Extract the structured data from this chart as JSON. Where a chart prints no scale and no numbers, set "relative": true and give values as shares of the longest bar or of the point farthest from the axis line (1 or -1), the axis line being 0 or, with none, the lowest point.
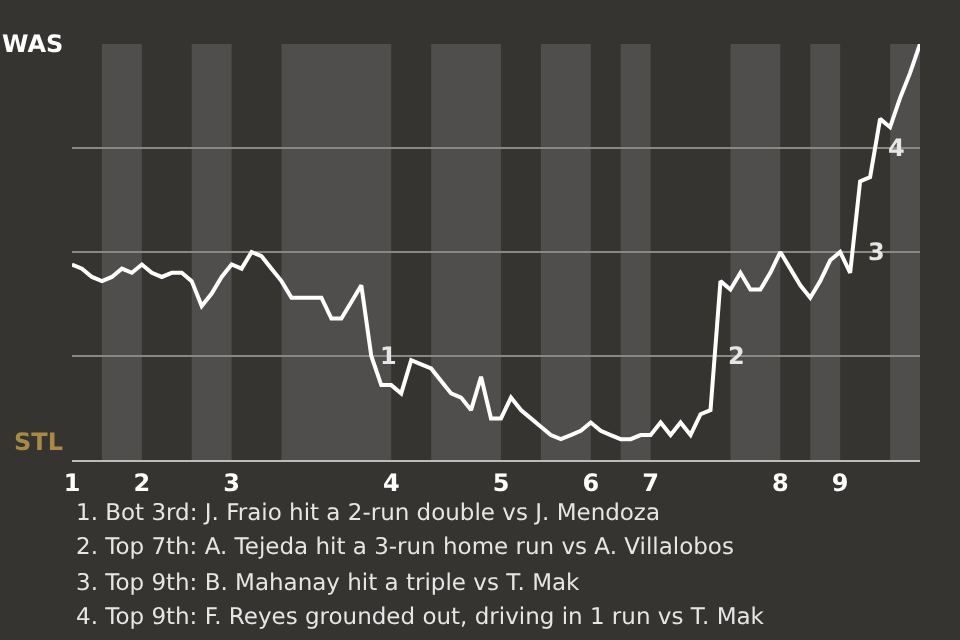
{
  "chart_data": {
    "type": "line",
    "categories": [
      "1",
      null,
      null,
      null,
      null,
      null,
      null,
      "2",
      null,
      null,
      null,
      null,
      null,
      null,
      null,
      null,
      "3",
      null,
      null,
      null,
      null,
      null,
      null,
      null,
      null,
      null,
      null,
      null,
      null,
      null,
      null,
      null,
      "4",
      null,
      null,
      null,
      null,
      null,
      null,
      null,
      null,
      null,
      null,
      "5",
      null,
      null,
      null,
      null,
      null,
      null,
      null,
      null,
      "6",
      null,
      null,
      null,
      null,
      null,
      "7",
      null,
      null,
      null,
      null,
      null,
      null,
      null,
      null,
      null,
      null,
      null,
      null,
      "8",
      null,
      null,
      null,
      null,
      null,
      "9",
      null,
      null,
      null,
      null,
      null,
      null,
      null,
      null
    ],
    "series": [
      {
        "color": "#ffffff",
        "values": [
          0.47,
          0.46,
          0.44,
          0.43,
          0.44,
          0.46,
          0.45,
          0.47,
          0.45,
          0.44,
          0.45,
          0.45,
          0.43,
          0.37,
          0.4,
          0.44,
          0.47,
          0.46,
          0.5,
          0.49,
          0.46,
          0.43,
          0.39,
          0.39,
          0.39,
          0.39,
          0.34,
          0.34,
          0.38,
          0.42,
          0.25,
          0.18,
          0.18,
          0.16,
          0.24,
          0.23,
          0.22,
          0.19,
          0.16,
          0.15,
          0.12,
          0.2,
          0.1,
          0.1,
          0.15,
          0.12,
          0.1,
          0.08,
          0.06,
          0.05,
          0.06,
          0.07,
          0.09,
          0.07,
          0.06,
          0.05,
          0.05,
          0.06,
          0.06,
          0.09,
          0.06,
          0.09,
          0.06,
          0.11,
          0.12,
          0.43,
          0.41,
          0.45,
          0.41,
          0.41,
          0.45,
          0.5,
          0.46,
          0.42,
          0.39,
          0.43,
          0.48,
          0.5,
          0.45,
          0.67,
          0.68,
          0.82,
          0.8,
          0.87,
          0.93,
          1.0
        ]
      }
    ],
    "relative": true,
    "grid": true,
    "legend": false,
    "marker": "none",
    "line_style": "solid",
    "annotations": [
      "WAS",
      "STL",
      "1",
      "2",
      "3",
      "4",
      "1. Bot 3rd: J. Fraio hit a 2-run double vs J. Mendoza",
      "2. Top 7th: A. Tejeda hit a 3-run home run vs A. Villalobos",
      "3. Top 9th: B. Mahanay hit a triple vs T. Mak",
      "4. Top 9th: F. Reyes grounded out, driving in 1 run vs T. Mak"
    ]
  }
}
